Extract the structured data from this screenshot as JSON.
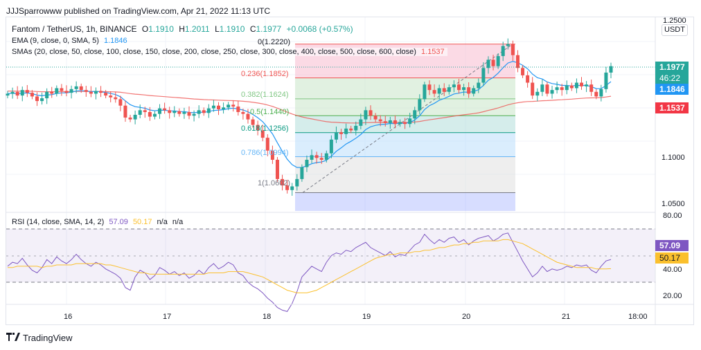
{
  "header": {
    "published": "JJJSparrowww published on TradingView.com, Apr 21, 2022 11:13 UTC"
  },
  "legend": {
    "symbol": "Fantom / TetherUS, 1h, BINANCE",
    "o_label": "O",
    "o": "1.1910",
    "h_label": "H",
    "h": "1.2011",
    "l_label": "L",
    "l": "1.1910",
    "c_label": "C",
    "c": "1.1977",
    "change": "+0.0068 (+0.57%)",
    "ema_label": "EMA (9, close, 0, SMA, 5)",
    "ema_value": "1.1846",
    "sma_label": "SMAs (20, close, 50, close, 100, close, 150, close, 200, close, 250, close, 300, close, 400, close, 500, close, 600, close)",
    "sma_value": "1.1537"
  },
  "rsi_legend": {
    "label": "RSI (14, close, SMA, 14, 2)",
    "v1": "57.09",
    "v2": "50.17",
    "na1": "n/a",
    "na2": "n/a"
  },
  "price_axis": {
    "currency": "USDT",
    "ticks": [
      "1.2500",
      "1.1000",
      "1.0500"
    ]
  },
  "rsi_axis": {
    "ticks": [
      "80.00",
      "40.00",
      "20.00"
    ]
  },
  "time_axis": {
    "labels": [
      "16",
      "17",
      "18",
      "19",
      "20",
      "21",
      "18:00"
    ]
  },
  "badges": {
    "price": "1.1977",
    "countdown": "46:22",
    "ema": "1.1846",
    "sma": "1.1537",
    "rsi": "57.09",
    "rsi_ma": "50.17"
  },
  "fib_labels": [
    "0(1.2220)",
    "0.236(1.1852)",
    "0.382(1.1624)",
    "0.5(1.1440)",
    "0.618(1.1256)",
    "0.786(1.0994)",
    "1(1.0602)"
  ],
  "footer": {
    "brand": "TradingView"
  },
  "colors": {
    "up": "#26a69a",
    "down": "#ef5350",
    "ema": "#2196f3",
    "sma": "#ef5350",
    "rsi": "#7e57c2",
    "rsi_ma": "#fbc02d"
  },
  "chart_data": [
    {
      "type": "candlestick",
      "title": "Fantom / TetherUS, 1h, BINANCE",
      "x_labels": [
        "16",
        "17",
        "18",
        "19",
        "20",
        "21",
        "18:00"
      ],
      "ylim": [
        1.04,
        1.25
      ],
      "y_ticks": [
        1.05,
        1.1,
        1.25
      ],
      "close": [
        1.168,
        1.17,
        1.166,
        1.172,
        1.169,
        1.165,
        1.16,
        1.163,
        1.17,
        1.168,
        1.174,
        1.171,
        1.169,
        1.173,
        1.176,
        1.172,
        1.17,
        1.168,
        1.171,
        1.169,
        1.166,
        1.164,
        1.162,
        1.155,
        1.142,
        1.14,
        1.145,
        1.15,
        1.148,
        1.143,
        1.146,
        1.152,
        1.15,
        1.147,
        1.149,
        1.146,
        1.148,
        1.144,
        1.146,
        1.15,
        1.147,
        1.152,
        1.155,
        1.151,
        1.153,
        1.156,
        1.154,
        1.148,
        1.146,
        1.14,
        1.134,
        1.128,
        1.12,
        1.106,
        1.096,
        1.075,
        1.068,
        1.063,
        1.067,
        1.075,
        1.088,
        1.096,
        1.101,
        1.098,
        1.096,
        1.103,
        1.118,
        1.126,
        1.124,
        1.13,
        1.128,
        1.133,
        1.14,
        1.15,
        1.144,
        1.14,
        1.138,
        1.136,
        1.139,
        1.135,
        1.137,
        1.135,
        1.141,
        1.15,
        1.162,
        1.178,
        1.172,
        1.168,
        1.174,
        1.17,
        1.175,
        1.178,
        1.172,
        1.175,
        1.168,
        1.174,
        1.18,
        1.196,
        1.205,
        1.198,
        1.209,
        1.22,
        1.222,
        1.21,
        1.196,
        1.188,
        1.18,
        1.166,
        1.17,
        1.178,
        1.168,
        1.172,
        1.175,
        1.172,
        1.177,
        1.174,
        1.18,
        1.176,
        1.178,
        1.17,
        1.165,
        1.173,
        1.191,
        1.198
      ],
      "ema_last": 1.1846,
      "sma_last": 1.1537,
      "fibonacci": {
        "levels": [
          0,
          0.236,
          0.382,
          0.5,
          0.618,
          0.786,
          1
        ],
        "prices": [
          1.222,
          1.1852,
          1.1624,
          1.144,
          1.1256,
          1.0994,
          1.0602
        ]
      },
      "last_price": 1.1977
    },
    {
      "type": "line",
      "title": "RSI (14, close, SMA, 14, 2)",
      "ylim": [
        10,
        85
      ],
      "y_ticks": [
        80,
        40,
        20
      ],
      "bands": [
        30,
        50,
        70
      ],
      "series": [
        {
          "name": "RSI",
          "values": [
            52,
            55,
            54,
            58,
            53,
            49,
            47,
            51,
            57,
            54,
            59,
            56,
            54,
            57,
            61,
            57,
            54,
            52,
            55,
            53,
            50,
            48,
            46,
            43,
            36,
            34,
            44,
            49,
            47,
            42,
            45,
            51,
            49,
            46,
            48,
            45,
            47,
            43,
            45,
            49,
            46,
            51,
            54,
            50,
            52,
            55,
            53,
            47,
            45,
            40,
            37,
            35,
            32,
            28,
            25,
            21,
            19,
            18,
            24,
            33,
            44,
            48,
            52,
            50,
            48,
            55,
            60,
            62,
            61,
            64,
            63,
            66,
            68,
            70,
            66,
            64,
            62,
            60,
            63,
            59,
            61,
            60,
            64,
            68,
            70,
            76,
            72,
            69,
            72,
            70,
            73,
            74,
            70,
            72,
            68,
            71,
            73,
            74,
            75,
            71,
            73,
            76,
            77,
            70,
            63,
            56,
            50,
            44,
            47,
            52,
            48,
            50,
            49,
            50,
            52,
            51,
            53,
            52,
            53,
            49,
            47,
            52,
            56,
            57.09
          ]
        },
        {
          "name": "RSI-based MA",
          "values": [
            51,
            51,
            52,
            52,
            52,
            52,
            52,
            51,
            52,
            52,
            53,
            53,
            53,
            53,
            54,
            54,
            54,
            54,
            54,
            54,
            53,
            53,
            52,
            51,
            50,
            49,
            48,
            47,
            47,
            46,
            46,
            46,
            46,
            46,
            46,
            46,
            46,
            46,
            46,
            46,
            46,
            47,
            47,
            47,
            47,
            48,
            48,
            48,
            48,
            47,
            46,
            45,
            44,
            42,
            40,
            38,
            36,
            34,
            33,
            32,
            32,
            32,
            33,
            34,
            36,
            38,
            40,
            42,
            44,
            46,
            48,
            50,
            52,
            54,
            56,
            58,
            59,
            60,
            61,
            61,
            62,
            62,
            62,
            63,
            63,
            64,
            64,
            65,
            66,
            66,
            67,
            68,
            68,
            69,
            69,
            70,
            70,
            71,
            71,
            71,
            71,
            72,
            72,
            71,
            70,
            69,
            67,
            65,
            63,
            61,
            59,
            57,
            55,
            54,
            53,
            52,
            51,
            51,
            51,
            51,
            50,
            50,
            50,
            50.17
          ]
        }
      ]
    }
  ]
}
